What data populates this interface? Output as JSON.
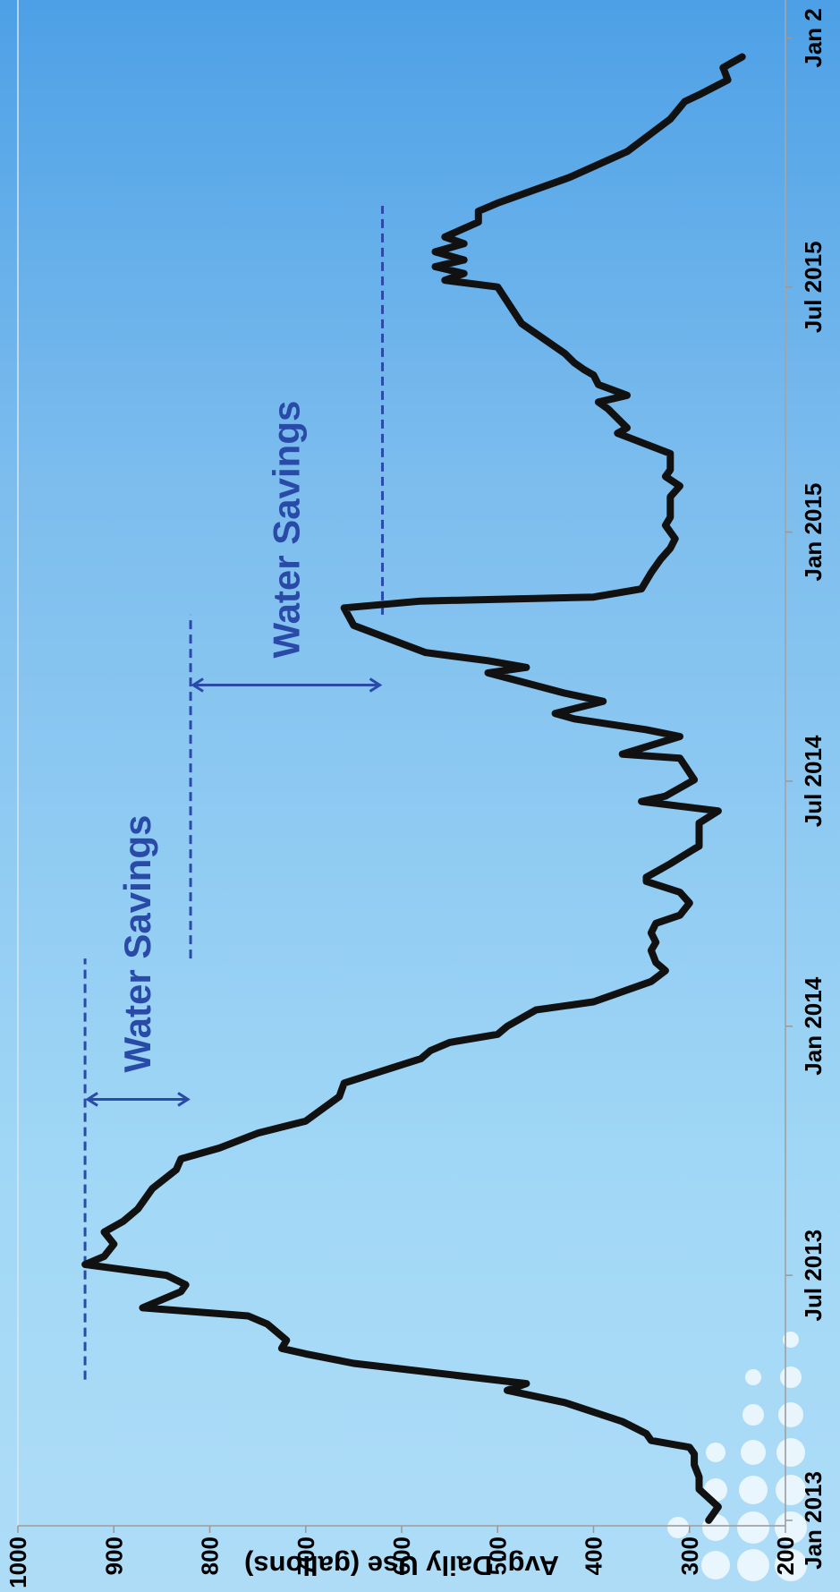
{
  "chart_data": {
    "type": "line",
    "title": "",
    "xlabel": "",
    "ylabel": "Avg. Daily Use (gallons)",
    "ylim": [
      200,
      1000
    ],
    "yticks": [
      200,
      300,
      400,
      500,
      600,
      700,
      800,
      900,
      1000
    ],
    "xticks": [
      {
        "label": "Jan 2013",
        "x": "2013-01-01"
      },
      {
        "label": "Jul 2013",
        "x": "2013-07-01"
      },
      {
        "label": "Jan 2014",
        "x": "2014-01-01"
      },
      {
        "label": "Jul 2014",
        "x": "2014-07-01"
      },
      {
        "label": "Jan 2015",
        "x": "2015-01-01"
      },
      {
        "label": "Jul 2015",
        "x": "2015-07-01"
      },
      {
        "label": "Jan 2",
        "x": "2016-01-01"
      }
    ],
    "xlim": [
      "2012-12-28",
      "2016-01-01"
    ],
    "grid": false,
    "line_color": "#111111",
    "series": [
      {
        "x": [
          "2013-01-01",
          "2013-01-11",
          "2013-01-24",
          "2013-02-02",
          "2013-02-11",
          "2013-02-19",
          "2013-02-24",
          "2013-03-01",
          "2013-03-06",
          "2013-03-15",
          "2013-03-29",
          "2013-04-07",
          "2013-04-12",
          "2013-04-22",
          "2013-04-27",
          "2013-05-04",
          "2013-05-08",
          "2013-05-14",
          "2013-05-26",
          "2013-06-01",
          "2013-06-07",
          "2013-06-19",
          "2013-06-24",
          "2013-07-01",
          "2013-07-09",
          "2013-07-15",
          "2013-07-24",
          "2013-08-02",
          "2013-08-10",
          "2013-08-19",
          "2013-09-03",
          "2013-09-17",
          "2013-09-25",
          "2013-10-03",
          "2013-10-14",
          "2013-10-23",
          "2013-11-10",
          "2013-11-20",
          "2013-12-08",
          "2013-12-14",
          "2013-12-20",
          "2013-12-26",
          "2014-01-01",
          "2014-01-13",
          "2014-01-19",
          "2014-02-03",
          "2014-02-11",
          "2014-02-17",
          "2014-02-26",
          "2014-03-04",
          "2014-03-11",
          "2014-03-18",
          "2014-03-24",
          "2014-04-02",
          "2014-04-10",
          "2014-04-18",
          "2014-04-21",
          "2014-04-27",
          "2014-05-01",
          "2014-05-12",
          "2014-05-14",
          "2014-05-31",
          "2014-06-09",
          "2014-06-16",
          "2014-06-20",
          "2014-07-02",
          "2014-07-18",
          "2014-07-21",
          "2014-08-03",
          "2014-08-08",
          "2014-08-16",
          "2014-08-20",
          "2014-08-29",
          "2014-09-04",
          "2014-09-19",
          "2014-09-23",
          "2014-09-28",
          "2014-10-04",
          "2014-10-24",
          "2014-11-06",
          "2014-11-11",
          "2014-11-14",
          "2014-11-20",
          "2014-12-02",
          "2014-12-12",
          "2014-12-20",
          "2014-12-27",
          "2015-01-06",
          "2015-01-12",
          "2015-01-27",
          "2015-02-04",
          "2015-02-11",
          "2015-02-16",
          "2015-02-28",
          "2015-03-15",
          "2015-03-19",
          "2015-04-02",
          "2015-04-07",
          "2015-04-12",
          "2015-04-20",
          "2015-04-27",
          "2015-05-01",
          "2015-05-06",
          "2015-05-13",
          "2015-06-04",
          "2015-07-01",
          "2015-07-06",
          "2015-07-11",
          "2015-07-16",
          "2015-07-21",
          "2015-07-27",
          "2015-08-02",
          "2015-08-07",
          "2015-08-18",
          "2015-08-26",
          "2015-09-01",
          "2015-09-20",
          "2015-10-09",
          "2015-11-02",
          "2015-11-15",
          "2015-11-20",
          "2015-12-01",
          "2015-12-10",
          "2015-12-18"
        ],
        "y": [
          280,
          270,
          290,
          290,
          295,
          295,
          300,
          340,
          345,
          370,
          430,
          490,
          470,
          590,
          650,
          700,
          725,
          720,
          740,
          760,
          870,
          830,
          825,
          845,
          930,
          910,
          900,
          910,
          890,
          875,
          860,
          835,
          830,
          790,
          750,
          700,
          665,
          660,
          580,
          570,
          550,
          500,
          490,
          460,
          400,
          340,
          325,
          335,
          340,
          335,
          340,
          335,
          310,
          300,
          310,
          345,
          345,
          330,
          320,
          295,
          290,
          290,
          270,
          350,
          325,
          295,
          310,
          370,
          310,
          345,
          420,
          440,
          390,
          430,
          510,
          470,
          510,
          575,
          650,
          660,
          580,
          400,
          350,
          340,
          330,
          320,
          315,
          325,
          320,
          320,
          310,
          325,
          320,
          320,
          375,
          365,
          385,
          395,
          365,
          395,
          400,
          410,
          420,
          430,
          475,
          500,
          555,
          535,
          565,
          535,
          565,
          535,
          555,
          520,
          520,
          500,
          425,
          365,
          320,
          305,
          290,
          260,
          265,
          245
        ]
      }
    ],
    "annotations": [
      {
        "text": "Water Savings",
        "from": 930,
        "to": 820,
        "color": "#2a4aa8"
      },
      {
        "text": "Water Savings",
        "from": 820,
        "to": 620,
        "color": "#2a4aa8"
      }
    ],
    "reference_lines": [
      {
        "y": 930,
        "x_from": "2013-04-15",
        "x_to": "2014-02-20",
        "style": "dashed",
        "color": "#2a4aa8"
      },
      {
        "y": 820,
        "x_from": "2014-02-20",
        "x_to": "2014-11-01",
        "style": "dashed",
        "color": "#2a4aa8"
      },
      {
        "y": 620,
        "x_from": "2014-11-01",
        "x_to": "2015-08-30",
        "style": "dashed",
        "color": "#2a4aa8"
      }
    ]
  }
}
